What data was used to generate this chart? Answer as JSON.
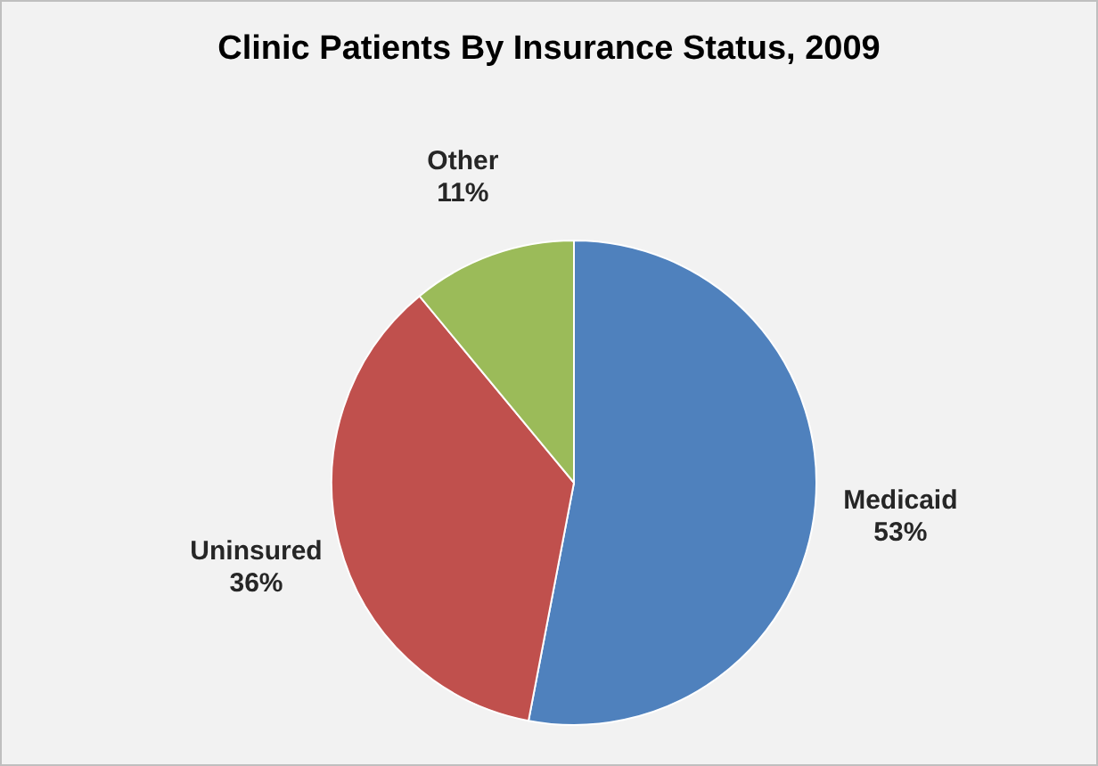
{
  "chart_data": {
    "type": "pie",
    "title": "Clinic Patients By Insurance Status, 2009",
    "categories": [
      "Medicaid",
      "Uninsured",
      "Other"
    ],
    "values": [
      53,
      36,
      11
    ],
    "colors": [
      "#4f81bd",
      "#c0504d",
      "#9bbb59"
    ],
    "value_labels": [
      "53%",
      "36%",
      "11%"
    ],
    "legend": false
  }
}
